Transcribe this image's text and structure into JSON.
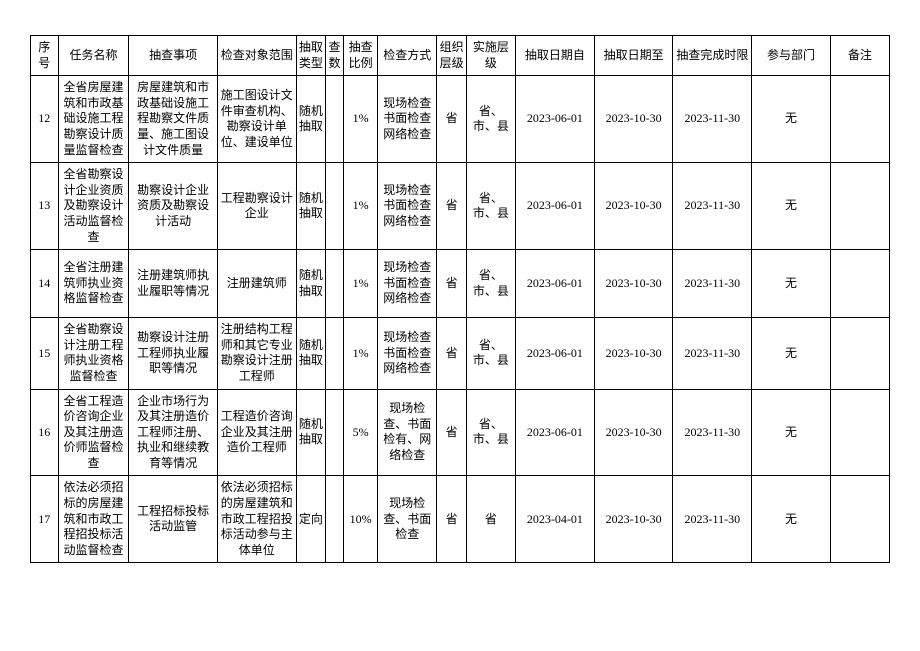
{
  "columns": [
    "序号",
    "任务名称",
    "抽查事项",
    "检查对象范围",
    "抽取类型",
    "查数",
    "抽查比例",
    "检查方式",
    "组织层级",
    "实施层级",
    "抽取日期自",
    "抽取日期至",
    "抽查完成时限",
    "参与部门",
    "备注"
  ],
  "rows": [
    {
      "seq": "12",
      "task": "全省房屋建筑和市政基础设施工程勘察设计质量监督检查",
      "item": "房屋建筑和市政基础设施工程勘察文件质量、施工图设计文件质量",
      "scope": "施工图设计文件审查机构、勘察设计单位、建设单位",
      "type": "随机抽取",
      "count": "",
      "ratio": "1%",
      "method": "现场检查\n书面检查\n网络检查",
      "org": "省",
      "impl": "省、市、县",
      "from": "2023-06-01",
      "to": "2023-10-30",
      "deadline": "2023-11-30",
      "dept": "无",
      "note": ""
    },
    {
      "seq": "13",
      "task": "全省勘察设计企业资质及勘察设计活动监督检查",
      "item": "勘察设计企业资质及勘察设计活动",
      "scope": "工程勘察设计企业",
      "type": "随机抽取",
      "count": "",
      "ratio": "1%",
      "method": "现场检查\n书面检查\n网络检查",
      "org": "省",
      "impl": "省、市、县",
      "from": "2023-06-01",
      "to": "2023-10-30",
      "deadline": "2023-11-30",
      "dept": "无",
      "note": ""
    },
    {
      "seq": "14",
      "task": "全省注册建筑师执业资格监督检查",
      "item": "注册建筑师执业履职等情况",
      "scope": "注册建筑师",
      "type": "随机抽取",
      "count": "",
      "ratio": "1%",
      "method": "现场检查\n书面检查\n网络检查",
      "org": "省",
      "impl": "省、市、县",
      "from": "2023-06-01",
      "to": "2023-10-30",
      "deadline": "2023-11-30",
      "dept": "无",
      "note": ""
    },
    {
      "seq": "15",
      "task": "全省勘察设计注册工程师执业资格监督检查",
      "item": "勘察设计注册工程师执业履职等情况",
      "scope": "注册结构工程师和其它专业勘察设计注册工程师",
      "type": "随机抽取",
      "count": "",
      "ratio": "1%",
      "method": "现场检查\n书面检查\n网络检查",
      "org": "省",
      "impl": "省、市、县",
      "from": "2023-06-01",
      "to": "2023-10-30",
      "deadline": "2023-11-30",
      "dept": "无",
      "note": ""
    },
    {
      "seq": "16",
      "task": "全省工程造价咨询企业及其注册造价师监督检查",
      "item": "企业市场行为及其注册造价工程师注册、执业和继续教育等情况",
      "scope": "工程造价咨询企业及其注册造价工程师",
      "type": "随机抽取",
      "count": "",
      "ratio": "5%",
      "method": "现场检查、书面检有、网络检查",
      "org": "省",
      "impl": "省、市、县",
      "from": "2023-06-01",
      "to": "2023-10-30",
      "deadline": "2023-11-30",
      "dept": "无",
      "note": ""
    },
    {
      "seq": "17",
      "task": "依法必须招标的房屋建筑和市政工程招投标活动监督检查",
      "item": "工程招标投标活动监管",
      "scope": "依法必须招标的房屋建筑和市政工程招投标活动参与主体单位",
      "type": "定向",
      "count": "",
      "ratio": "10%",
      "method": "现场检查、书面检查",
      "org": "省",
      "impl": "省",
      "from": "2023-04-01",
      "to": "2023-10-30",
      "deadline": "2023-11-30",
      "dept": "无",
      "note": ""
    }
  ]
}
